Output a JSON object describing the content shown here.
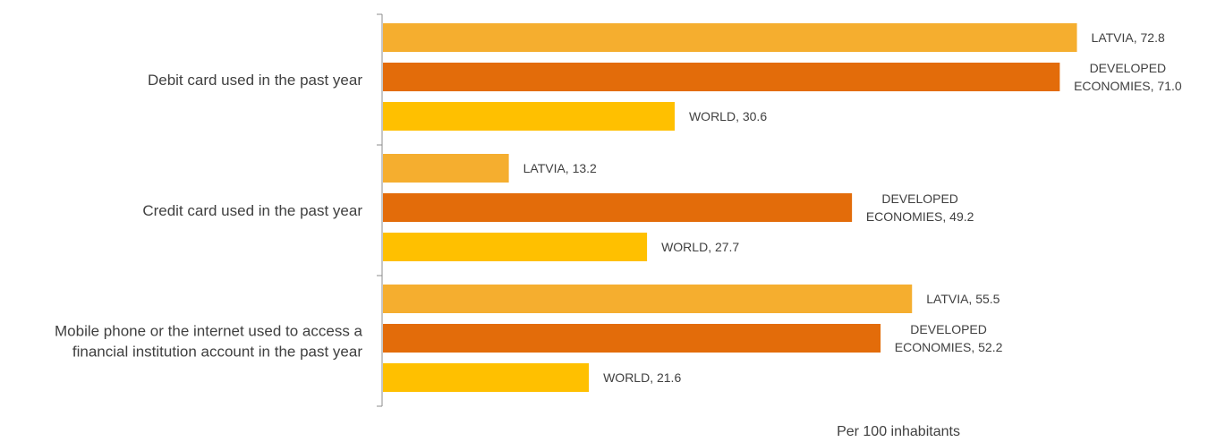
{
  "chart_data": {
    "type": "bar",
    "orientation": "horizontal",
    "categories": [
      [
        "Debit card used in the past year"
      ],
      [
        "Credit card used in the past year"
      ],
      [
        "Mobile phone or the internet used to access a",
        "financial institution account in the past year"
      ]
    ],
    "series": [
      {
        "name": "LATVIA",
        "values": [
          72.8,
          13.2,
          55.5
        ],
        "color": "#F5AE2F"
      },
      {
        "name": "DEVELOPED ECONOMIES",
        "values": [
          71.0,
          49.2,
          52.2
        ],
        "color": "#E36C0A"
      },
      {
        "name": "WORLD",
        "values": [
          30.6,
          27.7,
          21.6
        ],
        "color": "#FFC000"
      }
    ],
    "data_labels": [
      [
        [
          "LATVIA, 72.8"
        ],
        [
          "DEVELOPED",
          "ECONOMIES, 71.0"
        ],
        [
          "WORLD, 30.6"
        ]
      ],
      [
        [
          "LATVIA, 13.2"
        ],
        [
          "DEVELOPED",
          "ECONOMIES, 49.2"
        ],
        [
          "WORLD, 27.7"
        ]
      ],
      [
        [
          "LATVIA, 55.5"
        ],
        [
          "DEVELOPED",
          "ECONOMIES, 52.2"
        ],
        [
          "WORLD, 21.6"
        ]
      ]
    ],
    "xlabel": "Per 100 inhabitants",
    "ylabel": "",
    "title": "",
    "xlim": [
      0,
      73.5
    ],
    "grid": false,
    "legend": "none"
  }
}
